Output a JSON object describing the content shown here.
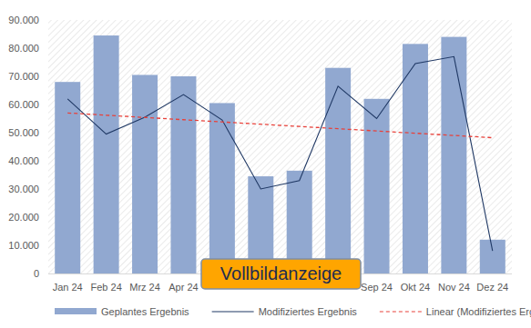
{
  "chart_data": {
    "type": "bar",
    "categories": [
      "Jan 24",
      "Feb 24",
      "Mrz 24",
      "Apr 24",
      null,
      null,
      null,
      null,
      "Sep 24",
      "Okt 24",
      "Nov 24",
      "Dez 24"
    ],
    "series": [
      {
        "name": "Geplantes Ergebnis",
        "type": "bar",
        "color": "#91a8d0",
        "values": [
          68000,
          84500,
          70500,
          70000,
          60500,
          34500,
          36500,
          73000,
          62000,
          81500,
          84000,
          12000
        ]
      },
      {
        "name": "Modifiziertes Ergebnis",
        "type": "line",
        "color": "#1f3864",
        "line_style": "solid",
        "values": [
          62000,
          49500,
          55500,
          63500,
          54500,
          30000,
          33000,
          66500,
          55000,
          74500,
          77000,
          8000
        ]
      },
      {
        "name": "Linear (Modifiziertes Ergebnis)",
        "type": "line",
        "color": "#e8413a",
        "line_style": "dashed",
        "values": [
          57000,
          56200,
          55400,
          54600,
          53800,
          53000,
          52200,
          51400,
          50600,
          49800,
          49000,
          48200
        ]
      }
    ],
    "ylim": [
      0,
      90000
    ],
    "yticks": [
      0,
      {
        "value": 10000,
        "label": "10.000"
      },
      {
        "value": 20000,
        "label": "20.000"
      },
      {
        "value": 30000,
        "label": "30.000"
      },
      {
        "value": 40000,
        "label": "40.000"
      },
      {
        "value": 50000,
        "label": "50.000"
      },
      {
        "value": 60000,
        "label": "60.000"
      },
      {
        "value": 70000,
        "label": "70.000"
      },
      {
        "value": 80000,
        "label": "80.000"
      },
      {
        "value": 90000,
        "label": "90.000"
      }
    ],
    "grid": false,
    "legend": "bottom",
    "annotations": [
      "Vollbildanzeige"
    ]
  }
}
